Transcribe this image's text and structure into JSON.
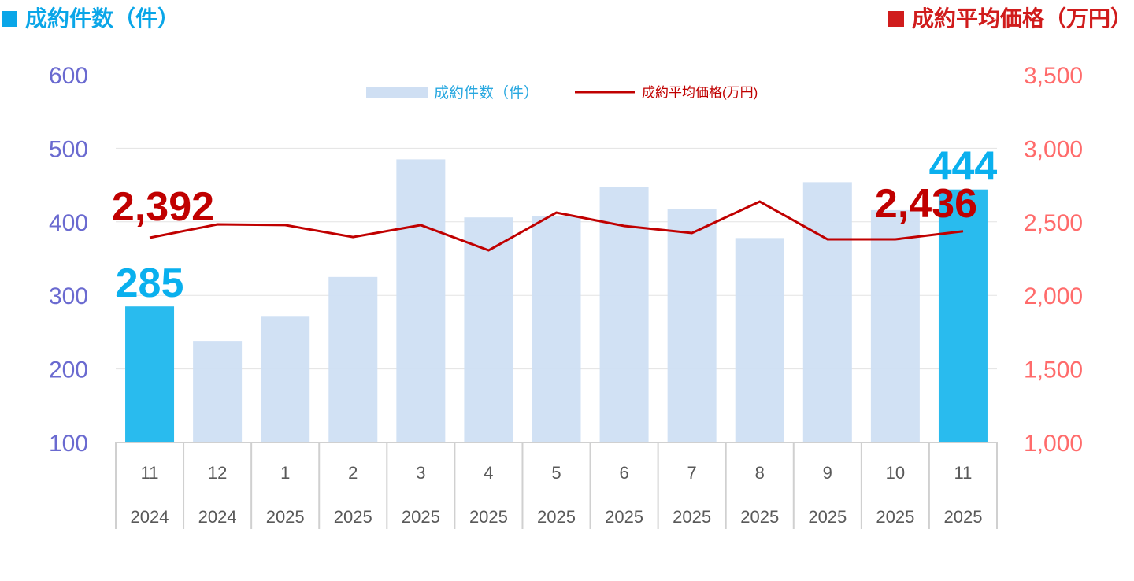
{
  "header": {
    "left_title": "成約件数（件）",
    "right_title": "成約平均価格（万円）"
  },
  "colors": {
    "bar": "#cfdff3",
    "bar_highlight": "#29bbee",
    "line": "#c00000",
    "left_axis": "#6a6ad0",
    "right_axis": "#ff6b6b",
    "left_title": "#0aa6e8",
    "right_title": "#d01c1c"
  },
  "chart_data": {
    "type": "bar",
    "categories": [
      [
        "11",
        "2024"
      ],
      [
        "12",
        "2024"
      ],
      [
        "1",
        "2025"
      ],
      [
        "2",
        "2025"
      ],
      [
        "3",
        "2025"
      ],
      [
        "4",
        "2025"
      ],
      [
        "5",
        "2025"
      ],
      [
        "6",
        "2025"
      ],
      [
        "7",
        "2025"
      ],
      [
        "8",
        "2025"
      ],
      [
        "9",
        "2025"
      ],
      [
        "10",
        "2025"
      ],
      [
        "11",
        "2025"
      ]
    ],
    "series": [
      {
        "name": "成約件数（件）",
        "type": "bar",
        "axis": "left",
        "values": [
          285,
          238,
          271,
          325,
          485,
          406,
          408,
          447,
          417,
          378,
          454,
          416,
          444
        ],
        "highlight": [
          0,
          12
        ]
      },
      {
        "name": "成約平均価格(万円)",
        "type": "line",
        "axis": "right",
        "values": [
          2392,
          2483,
          2478,
          2397,
          2478,
          2306,
          2563,
          2472,
          2424,
          2638,
          2381,
          2381,
          2436
        ]
      }
    ],
    "left_axis": {
      "range": [
        100,
        600
      ],
      "ticks": [
        "100",
        "200",
        "300",
        "400",
        "500",
        "600"
      ]
    },
    "right_axis": {
      "range": [
        1000,
        3500
      ],
      "ticks": [
        "1,000",
        "1,500",
        "2,000",
        "2,500",
        "3,000",
        "3,500"
      ]
    },
    "annotations": {
      "bar_first": "285",
      "bar_last": "444",
      "line_first": "2,392",
      "line_last": "2,436"
    },
    "legend": {
      "position": "top-center",
      "bar_label": "成約件数（件）",
      "line_label": "成約平均価格(万円)"
    },
    "grid": true
  }
}
